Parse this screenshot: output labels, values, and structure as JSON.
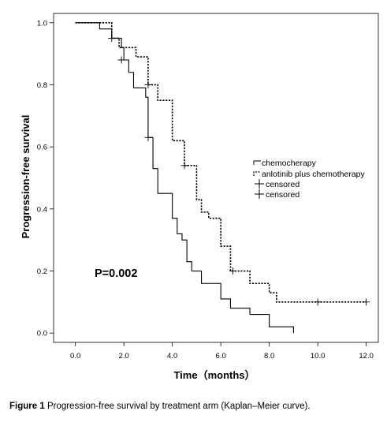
{
  "chart_data": {
    "type": "line",
    "subtype": "kaplan-meier-step",
    "xlabel": "Time（months）",
    "ylabel": "Progression-free survival",
    "xlim": [
      -0.9,
      12.5
    ],
    "ylim": [
      -0.03,
      1.03
    ],
    "xticks": [
      0,
      2,
      4,
      6,
      8,
      10,
      12
    ],
    "xtick_labels": [
      "0.0",
      "2.0",
      "4.0",
      "6.0",
      "8.0",
      "10.0",
      "12.0"
    ],
    "yticks": [
      0,
      0.2,
      0.4,
      0.6,
      0.8,
      1.0
    ],
    "ytick_labels": [
      "0.0",
      "0.2",
      "0.4",
      "0.6",
      "0.8",
      "1.0"
    ],
    "grid": false,
    "legend_position": "right",
    "legend": [
      {
        "label": "chemocherapy",
        "marker": "step-solid"
      },
      {
        "label": "anlotinib plus chemotherapy",
        "marker": "step-dashed"
      },
      {
        "label": "censored",
        "marker": "plus"
      },
      {
        "label": "censored",
        "marker": "plus"
      }
    ],
    "annotation": "P=0.002",
    "series": [
      {
        "style": "solid",
        "x": [
          0,
          1.0,
          1.5,
          1.9,
          2.0,
          2.2,
          2.4,
          2.9,
          3.0,
          3.2,
          3.4,
          4.0,
          4.2,
          4.4,
          4.6,
          4.8,
          5.2,
          5.8,
          6.0,
          6.4,
          7.2,
          8.0,
          9.0
        ],
        "y": [
          1.0,
          0.98,
          0.95,
          0.92,
          0.88,
          0.84,
          0.79,
          0.76,
          0.63,
          0.53,
          0.45,
          0.37,
          0.32,
          0.3,
          0.23,
          0.2,
          0.16,
          0.16,
          0.11,
          0.08,
          0.06,
          0.02,
          0.0
        ],
        "censored": [
          [
            1.5,
            0.95
          ],
          [
            1.9,
            0.88
          ],
          [
            3.0,
            0.63
          ]
        ]
      },
      {
        "style": "dashed",
        "x": [
          0,
          1.5,
          1.8,
          2.5,
          3.0,
          3.4,
          4.0,
          4.5,
          5.0,
          5.2,
          5.5,
          6.0,
          6.4,
          7.2,
          8.0,
          8.3,
          12.0
        ],
        "y": [
          1.0,
          0.95,
          0.92,
          0.89,
          0.8,
          0.75,
          0.62,
          0.54,
          0.43,
          0.39,
          0.37,
          0.28,
          0.2,
          0.16,
          0.13,
          0.1,
          0.1
        ],
        "censored": [
          [
            3.0,
            0.8
          ],
          [
            4.5,
            0.54
          ],
          [
            6.5,
            0.2
          ],
          [
            10.0,
            0.1
          ],
          [
            12.0,
            0.1
          ]
        ]
      }
    ]
  },
  "caption": {
    "label": "Figure 1",
    "text": "Progression-free survival by treatment arm (Kaplan–Meier curve)."
  }
}
